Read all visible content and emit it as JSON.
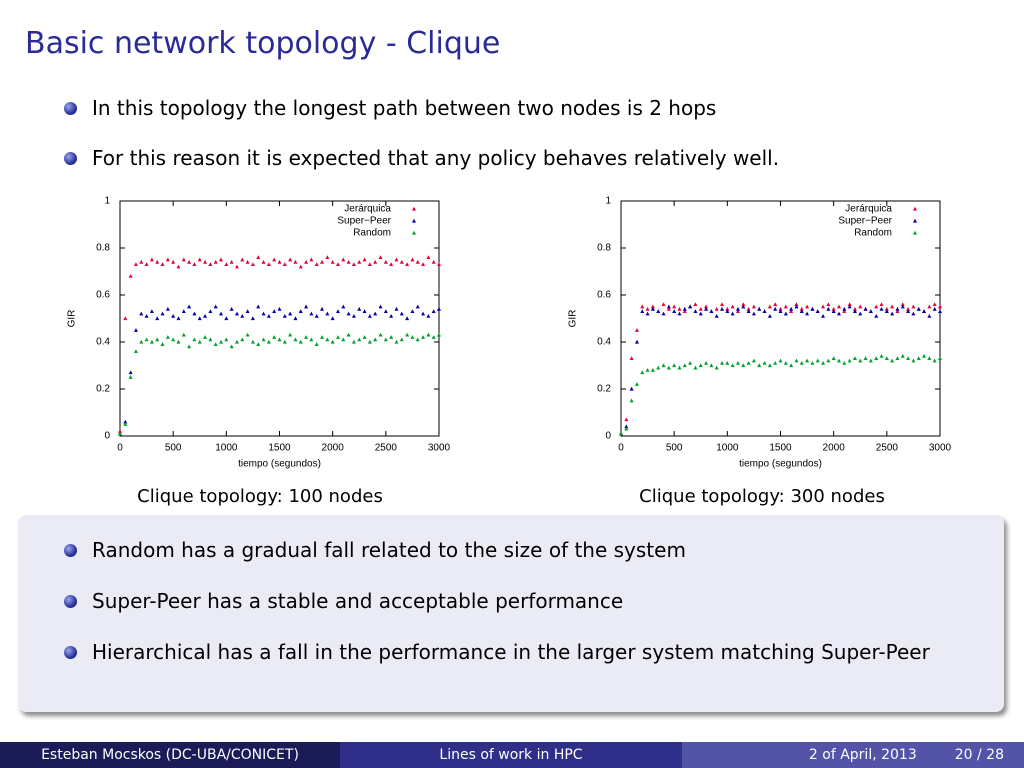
{
  "title": "Basic network topology - Clique",
  "bullets": [
    "In this topology the longest path between two nodes is 2 hops",
    "For this reason it is expected that any policy behaves relatively well."
  ],
  "chart_data": [
    {
      "type": "scatter",
      "caption": "Clique topology:  100 nodes",
      "xlabel": "tiempo (segundos)",
      "ylabel": "GIR",
      "xlim": [
        0,
        3000
      ],
      "xticks": [
        0,
        500,
        1000,
        1500,
        2000,
        2500,
        3000
      ],
      "ylim": [
        0,
        1
      ],
      "yticks": [
        0,
        0.2,
        0.4,
        0.6,
        0.8,
        1
      ],
      "legend": "upper-right",
      "x": [
        0,
        50,
        100,
        150,
        200,
        250,
        300,
        350,
        400,
        450,
        500,
        550,
        600,
        650,
        700,
        750,
        800,
        850,
        900,
        950,
        1000,
        1050,
        1100,
        1150,
        1200,
        1250,
        1300,
        1350,
        1400,
        1450,
        1500,
        1550,
        1600,
        1650,
        1700,
        1750,
        1800,
        1850,
        1900,
        1950,
        2000,
        2050,
        2100,
        2150,
        2200,
        2250,
        2300,
        2350,
        2400,
        2450,
        2500,
        2550,
        2600,
        2650,
        2700,
        2750,
        2800,
        2850,
        2900,
        2950,
        3000
      ],
      "series": [
        {
          "name": "Jerárquica",
          "color": "#e8003c",
          "values": [
            0.02,
            0.5,
            0.68,
            0.73,
            0.74,
            0.73,
            0.75,
            0.74,
            0.73,
            0.75,
            0.74,
            0.72,
            0.75,
            0.74,
            0.73,
            0.75,
            0.74,
            0.73,
            0.74,
            0.75,
            0.73,
            0.74,
            0.72,
            0.75,
            0.74,
            0.73,
            0.76,
            0.74,
            0.73,
            0.75,
            0.74,
            0.73,
            0.75,
            0.74,
            0.72,
            0.74,
            0.75,
            0.73,
            0.74,
            0.76,
            0.74,
            0.73,
            0.75,
            0.74,
            0.73,
            0.74,
            0.75,
            0.73,
            0.74,
            0.76,
            0.74,
            0.73,
            0.75,
            0.74,
            0.73,
            0.75,
            0.74,
            0.73,
            0.76,
            0.74,
            0.73
          ]
        },
        {
          "name": "Super−Peer",
          "color": "#0000a8",
          "values": [
            0.01,
            0.06,
            0.27,
            0.45,
            0.52,
            0.51,
            0.53,
            0.5,
            0.52,
            0.54,
            0.51,
            0.5,
            0.53,
            0.55,
            0.52,
            0.5,
            0.51,
            0.53,
            0.55,
            0.52,
            0.5,
            0.54,
            0.52,
            0.51,
            0.53,
            0.5,
            0.55,
            0.52,
            0.51,
            0.53,
            0.54,
            0.51,
            0.52,
            0.5,
            0.53,
            0.55,
            0.52,
            0.51,
            0.54,
            0.52,
            0.5,
            0.53,
            0.55,
            0.52,
            0.51,
            0.54,
            0.53,
            0.51,
            0.52,
            0.55,
            0.53,
            0.51,
            0.54,
            0.52,
            0.5,
            0.53,
            0.55,
            0.52,
            0.51,
            0.53,
            0.54
          ]
        },
        {
          "name": "Random",
          "color": "#00a030",
          "values": [
            0.01,
            0.05,
            0.25,
            0.36,
            0.4,
            0.41,
            0.4,
            0.41,
            0.39,
            0.42,
            0.41,
            0.4,
            0.43,
            0.38,
            0.41,
            0.4,
            0.42,
            0.41,
            0.39,
            0.4,
            0.41,
            0.38,
            0.4,
            0.41,
            0.43,
            0.4,
            0.39,
            0.41,
            0.4,
            0.42,
            0.41,
            0.4,
            0.43,
            0.41,
            0.4,
            0.42,
            0.41,
            0.39,
            0.42,
            0.41,
            0.4,
            0.42,
            0.41,
            0.43,
            0.4,
            0.41,
            0.42,
            0.4,
            0.41,
            0.43,
            0.41,
            0.42,
            0.4,
            0.41,
            0.43,
            0.42,
            0.41,
            0.42,
            0.43,
            0.42,
            0.43
          ]
        }
      ]
    },
    {
      "type": "scatter",
      "caption": "Clique topology:  300 nodes",
      "xlabel": "tiempo (segundos)",
      "ylabel": "GIR",
      "xlim": [
        0,
        3000
      ],
      "xticks": [
        0,
        500,
        1000,
        1500,
        2000,
        2500,
        3000
      ],
      "ylim": [
        0,
        1
      ],
      "yticks": [
        0,
        0.2,
        0.4,
        0.6,
        0.8,
        1
      ],
      "legend": "upper-right",
      "x": [
        0,
        50,
        100,
        150,
        200,
        250,
        300,
        350,
        400,
        450,
        500,
        550,
        600,
        650,
        700,
        750,
        800,
        850,
        900,
        950,
        1000,
        1050,
        1100,
        1150,
        1200,
        1250,
        1300,
        1350,
        1400,
        1450,
        1500,
        1550,
        1600,
        1650,
        1700,
        1750,
        1800,
        1850,
        1900,
        1950,
        2000,
        2050,
        2100,
        2150,
        2200,
        2250,
        2300,
        2350,
        2400,
        2450,
        2500,
        2550,
        2600,
        2650,
        2700,
        2750,
        2800,
        2850,
        2900,
        2950,
        3000
      ],
      "series": [
        {
          "name": "Jerárquica",
          "color": "#e8003c",
          "values": [
            0.01,
            0.07,
            0.33,
            0.45,
            0.55,
            0.54,
            0.55,
            0.53,
            0.56,
            0.54,
            0.55,
            0.54,
            0.53,
            0.55,
            0.56,
            0.54,
            0.55,
            0.53,
            0.54,
            0.56,
            0.54,
            0.55,
            0.53,
            0.56,
            0.54,
            0.55,
            0.54,
            0.53,
            0.55,
            0.56,
            0.54,
            0.55,
            0.53,
            0.56,
            0.54,
            0.55,
            0.54,
            0.53,
            0.55,
            0.56,
            0.54,
            0.55,
            0.53,
            0.56,
            0.54,
            0.55,
            0.54,
            0.53,
            0.55,
            0.56,
            0.54,
            0.55,
            0.53,
            0.56,
            0.54,
            0.55,
            0.54,
            0.53,
            0.55,
            0.56,
            0.55
          ]
        },
        {
          "name": "Super−Peer",
          "color": "#0000a8",
          "values": [
            0.01,
            0.04,
            0.2,
            0.4,
            0.53,
            0.52,
            0.54,
            0.53,
            0.52,
            0.55,
            0.53,
            0.52,
            0.54,
            0.55,
            0.53,
            0.52,
            0.54,
            0.53,
            0.51,
            0.54,
            0.53,
            0.52,
            0.54,
            0.55,
            0.53,
            0.52,
            0.54,
            0.53,
            0.51,
            0.54,
            0.53,
            0.52,
            0.54,
            0.55,
            0.53,
            0.52,
            0.54,
            0.53,
            0.51,
            0.54,
            0.53,
            0.52,
            0.54,
            0.55,
            0.53,
            0.52,
            0.54,
            0.53,
            0.51,
            0.54,
            0.53,
            0.52,
            0.54,
            0.55,
            0.53,
            0.52,
            0.54,
            0.53,
            0.51,
            0.54,
            0.53
          ]
        },
        {
          "name": "Random",
          "color": "#00a030",
          "values": [
            0.01,
            0.03,
            0.15,
            0.22,
            0.27,
            0.28,
            0.28,
            0.29,
            0.3,
            0.29,
            0.3,
            0.29,
            0.3,
            0.31,
            0.29,
            0.3,
            0.31,
            0.3,
            0.29,
            0.31,
            0.31,
            0.3,
            0.31,
            0.3,
            0.31,
            0.32,
            0.3,
            0.31,
            0.3,
            0.31,
            0.32,
            0.31,
            0.3,
            0.32,
            0.31,
            0.32,
            0.31,
            0.32,
            0.31,
            0.32,
            0.33,
            0.32,
            0.31,
            0.32,
            0.33,
            0.32,
            0.33,
            0.32,
            0.33,
            0.34,
            0.33,
            0.32,
            0.33,
            0.34,
            0.33,
            0.32,
            0.33,
            0.34,
            0.33,
            0.32,
            0.33
          ]
        }
      ]
    }
  ],
  "box_bullets": [
    "Random has a gradual fall related to the size of the system",
    "Super-Peer has a stable and acceptable performance",
    "Hierarchical has a fall in the performance in the larger system matching Super-Peer"
  ],
  "footer": {
    "author": "Esteban Mocskos  (DC-UBA/CONICET)",
    "talk": "Lines of work in HPC",
    "date": "2 of April, 2013",
    "page": "20 / 28"
  }
}
